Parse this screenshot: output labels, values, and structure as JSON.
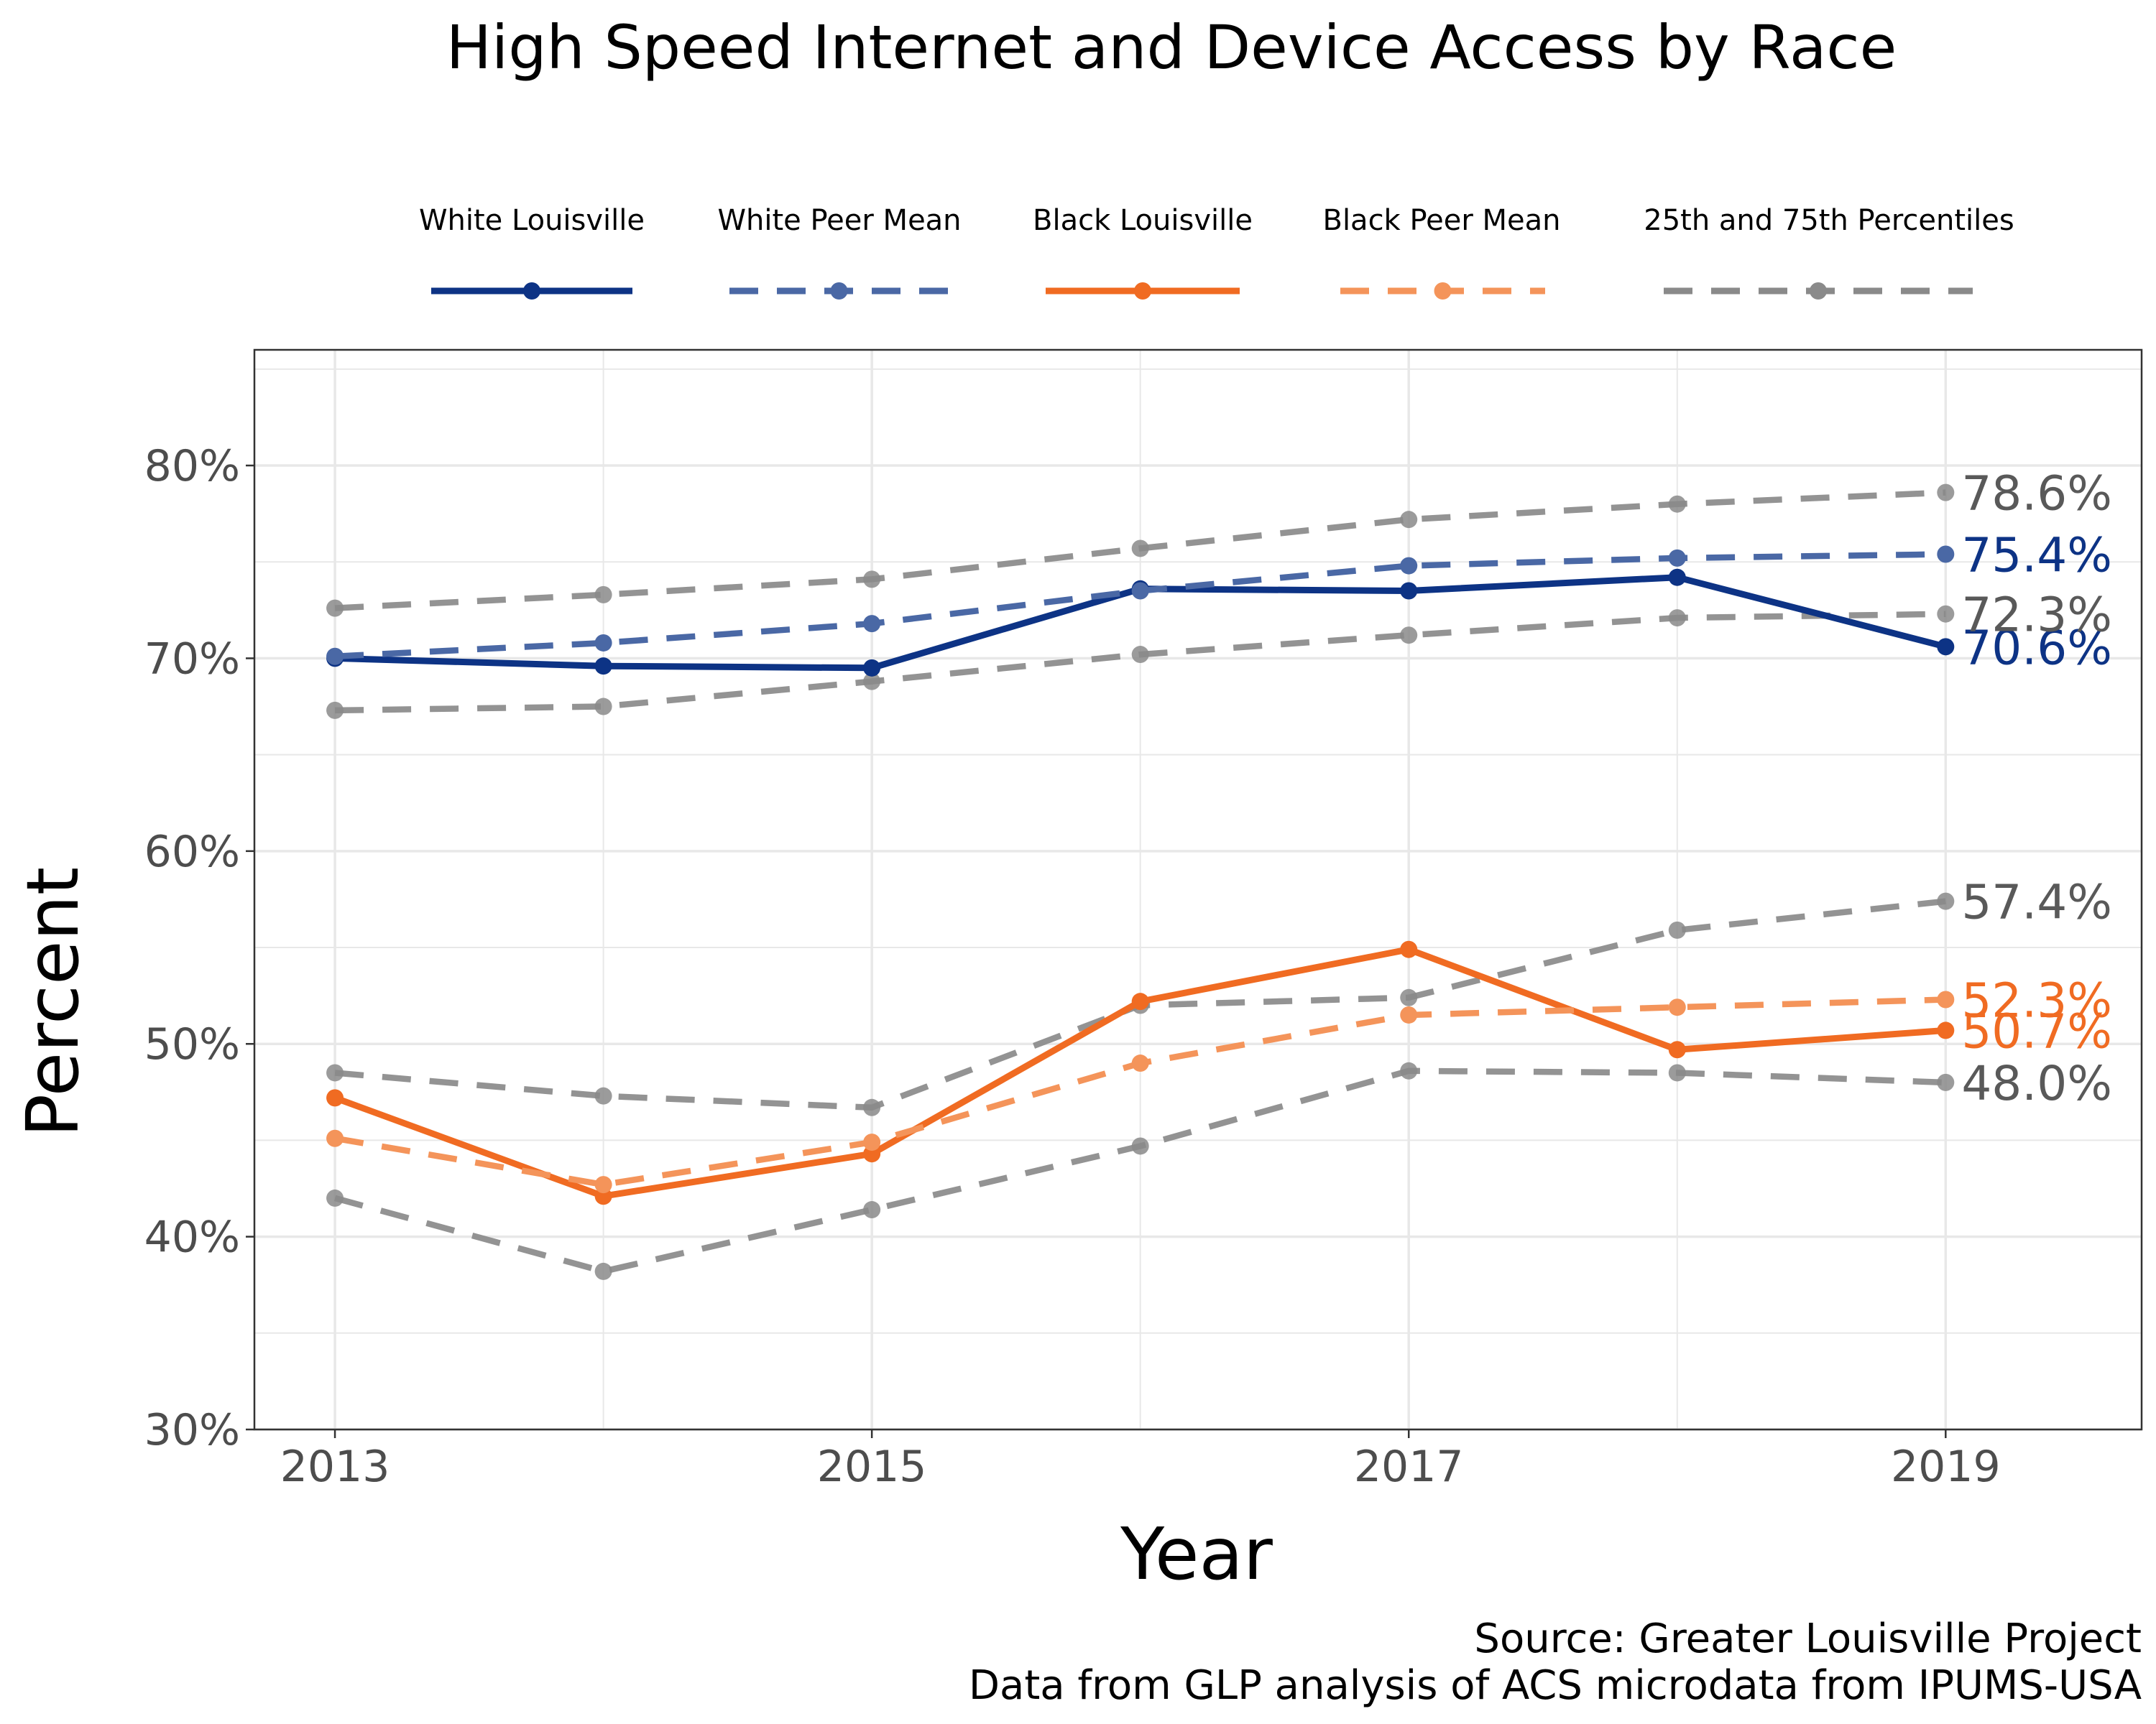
{
  "chart_data": {
    "type": "line",
    "title": "High Speed Internet and Device Access by Race",
    "xlabel": "Year",
    "ylabel": "Percent",
    "x": [
      2013,
      2014,
      2015,
      2016,
      2017,
      2018,
      2019
    ],
    "x_ticks": [
      "2013",
      "2015",
      "2017",
      "2019"
    ],
    "y_ticks": [
      "30%",
      "40%",
      "50%",
      "60%",
      "70%",
      "80%"
    ],
    "ylim": [
      30,
      86
    ],
    "xlim": [
      2012.7,
      2019.73
    ],
    "grid": true,
    "legend_position": "top",
    "series": [
      {
        "name": "White Louisville",
        "color": "#0d3385",
        "style": "solid",
        "values": [
          70.0,
          69.6,
          69.5,
          73.6,
          73.5,
          74.2,
          70.6
        ],
        "end_label": "70.6%"
      },
      {
        "name": "White Peer Mean",
        "color": "#4a68a5",
        "style": "dashed",
        "values": [
          70.1,
          70.8,
          71.8,
          73.5,
          74.8,
          75.2,
          75.4
        ],
        "end_label": "75.4%"
      },
      {
        "name": "Black Louisville",
        "color": "#f06b22",
        "style": "solid",
        "values": [
          47.2,
          42.1,
          44.3,
          52.2,
          54.9,
          49.7,
          50.7
        ],
        "end_label": "50.7%"
      },
      {
        "name": "Black Peer Mean",
        "color": "#f4945a",
        "style": "dashed",
        "values": [
          45.1,
          42.7,
          44.9,
          49.0,
          51.5,
          51.9,
          52.3
        ],
        "end_label": "52.3%"
      },
      {
        "name": "25th and 75th Percentiles",
        "color": "#8a8a8a",
        "style": "dashed",
        "values": [
          72.6,
          73.3,
          74.1,
          75.7,
          77.2,
          78.0,
          78.6
        ],
        "end_label": "78.6%"
      },
      {
        "name": "25th and 75th Percentiles",
        "color": "#8a8a8a",
        "style": "dashed",
        "values": [
          67.3,
          67.5,
          68.8,
          70.2,
          71.2,
          72.1,
          72.3
        ],
        "end_label": "72.3%"
      },
      {
        "name": "25th and 75th Percentiles",
        "color": "#8a8a8a",
        "style": "dashed",
        "values": [
          48.5,
          47.3,
          46.7,
          52.0,
          52.4,
          55.9,
          57.4
        ],
        "end_label": "57.4%"
      },
      {
        "name": "25th and 75th Percentiles",
        "color": "#8a8a8a",
        "style": "dashed",
        "values": [
          42.0,
          38.2,
          41.4,
          44.7,
          48.6,
          48.5,
          48.0
        ],
        "end_label": "48.0%"
      }
    ],
    "legend": [
      {
        "label": "White Louisville",
        "color": "#0d3385",
        "style": "solid"
      },
      {
        "label": "White Peer Mean",
        "color": "#4a68a5",
        "style": "dashed"
      },
      {
        "label": "Black Louisville",
        "color": "#f06b22",
        "style": "solid"
      },
      {
        "label": "Black Peer Mean",
        "color": "#f4945a",
        "style": "dashed"
      },
      {
        "label": "25th and 75th Percentiles",
        "color": "#8a8a8a",
        "style": "dashed"
      }
    ],
    "caption": [
      "Source: Greater Louisville Project",
      "Data from GLP analysis of ACS microdata from IPUMS-USA"
    ]
  }
}
